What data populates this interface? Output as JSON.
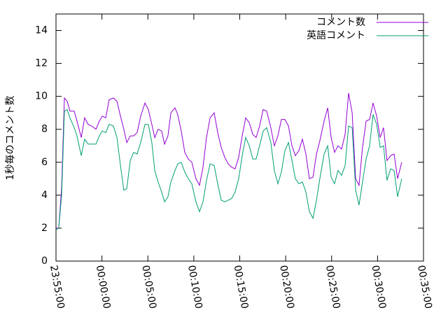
{
  "chart_data": {
    "type": "line",
    "ylabel": "1秒毎のコメント数",
    "x": [
      "23:55:00",
      "23:55:18",
      "23:55:37",
      "23:55:55",
      "23:56:13",
      "23:56:31",
      "23:56:59",
      "23:57:17",
      "23:57:45",
      "23:58:07",
      "23:58:30",
      "23:58:53",
      "23:59:21",
      "23:59:43",
      "00:00:02",
      "00:00:25",
      "00:00:47",
      "00:01:15",
      "00:01:38",
      "00:02:01",
      "00:02:23",
      "00:02:42",
      "00:03:05",
      "00:03:27",
      "00:03:50",
      "00:04:13",
      "00:04:41",
      "00:05:03",
      "00:05:26",
      "00:05:45",
      "00:06:07",
      "00:06:30",
      "00:06:49",
      "00:07:11",
      "00:07:30",
      "00:07:57",
      "00:08:15",
      "00:08:38",
      "00:09:01",
      "00:09:24",
      "00:09:47",
      "00:10:14",
      "00:10:37",
      "00:11:00",
      "00:11:23",
      "00:11:46",
      "00:12:13",
      "00:12:36",
      "00:12:59",
      "00:13:22",
      "00:13:45",
      "00:14:07",
      "00:14:30",
      "00:14:53",
      "00:15:16",
      "00:15:39",
      "00:16:02",
      "00:16:25",
      "00:16:47",
      "00:17:10",
      "00:17:33",
      "00:17:56",
      "00:18:23",
      "00:18:46",
      "00:19:09",
      "00:19:32",
      "00:19:55",
      "00:20:18",
      "00:20:41",
      "00:21:03",
      "00:21:26",
      "00:21:49",
      "00:22:12",
      "00:22:35",
      "00:22:58",
      "00:23:21",
      "00:23:43",
      "00:24:11",
      "00:24:34",
      "00:24:57",
      "00:25:19",
      "00:25:42",
      "00:26:05",
      "00:26:28",
      "00:26:51",
      "00:27:14",
      "00:27:37",
      "00:27:59",
      "00:28:22",
      "00:28:45",
      "00:29:08",
      "00:29:31",
      "00:29:54",
      "00:30:17",
      "00:30:39",
      "00:31:02",
      "00:31:25",
      "00:31:48",
      "00:32:11",
      "00:32:38"
    ],
    "series": [
      {
        "name": "コメント数",
        "color": "#9400d3",
        "values": [
          2.0,
          2.0,
          4.5,
          9.9,
          9.7,
          9.1,
          9.1,
          8.5,
          7.5,
          8.7,
          8.3,
          8.2,
          8.0,
          8.5,
          8.8,
          8.7,
          9.8,
          9.9,
          9.7,
          8.8,
          8.0,
          7.2,
          7.6,
          7.6,
          7.8,
          8.8,
          9.6,
          9.2,
          8.3,
          7.5,
          8.0,
          7.9,
          7.1,
          7.6,
          9.0,
          9.3,
          8.9,
          7.9,
          6.6,
          6.2,
          6.0,
          5.0,
          4.6,
          5.7,
          7.5,
          8.7,
          9.0,
          7.8,
          6.9,
          6.3,
          5.9,
          5.7,
          5.6,
          6.3,
          7.6,
          8.7,
          8.4,
          7.7,
          7.5,
          8.2,
          9.2,
          9.1,
          8.1,
          7.0,
          7.6,
          8.6,
          8.6,
          8.2,
          7.0,
          6.4,
          6.7,
          7.4,
          6.5,
          5.0,
          5.1,
          6.5,
          7.3,
          8.5,
          9.3,
          7.5,
          6.6,
          7.0,
          6.8,
          7.7,
          10.2,
          9.0,
          5.0,
          4.6,
          6.9,
          8.5,
          8.6,
          9.6,
          8.8,
          7.5,
          8.1,
          6.1,
          6.4,
          6.5,
          5.0,
          6.0
        ]
      },
      {
        "name": "英語コメント",
        "color": "#009e73",
        "values": [
          1.9,
          2.0,
          4.0,
          9.1,
          9.2,
          8.7,
          8.1,
          7.6,
          6.4,
          7.4,
          7.1,
          7.1,
          7.1,
          7.6,
          7.9,
          7.8,
          8.3,
          8.2,
          7.5,
          5.8,
          4.3,
          4.4,
          6.1,
          6.6,
          6.5,
          7.2,
          8.3,
          8.3,
          7.2,
          5.5,
          4.8,
          4.2,
          3.6,
          3.9,
          4.8,
          5.5,
          5.9,
          6.0,
          5.4,
          5.0,
          4.7,
          3.6,
          3.0,
          3.6,
          4.9,
          5.9,
          5.8,
          4.7,
          3.7,
          3.6,
          3.7,
          3.8,
          4.2,
          5.0,
          6.4,
          7.5,
          7.0,
          6.2,
          6.2,
          7.0,
          7.9,
          8.1,
          7.2,
          5.5,
          4.7,
          5.4,
          6.7,
          7.2,
          6.1,
          5.0,
          4.7,
          4.8,
          4.2,
          3.0,
          2.6,
          3.7,
          5.0,
          6.5,
          7.0,
          5.1,
          4.7,
          5.5,
          5.2,
          5.8,
          8.2,
          8.1,
          4.3,
          3.4,
          4.8,
          6.2,
          7.0,
          8.9,
          8.3,
          6.9,
          7.0,
          4.9,
          5.6,
          5.5,
          3.9,
          5.0
        ]
      }
    ],
    "xlim": [
      "23:55:00",
      "00:35:00"
    ],
    "xticks": [
      "23:55:00",
      "00:00:00",
      "00:05:00",
      "00:10:00",
      "00:15:00",
      "00:20:00",
      "00:25:00",
      "00:30:00",
      "00:35:00"
    ],
    "ylim": [
      0,
      15
    ],
    "yticks": [
      0,
      2,
      4,
      6,
      8,
      10,
      12,
      14
    ],
    "legend": "top right"
  }
}
